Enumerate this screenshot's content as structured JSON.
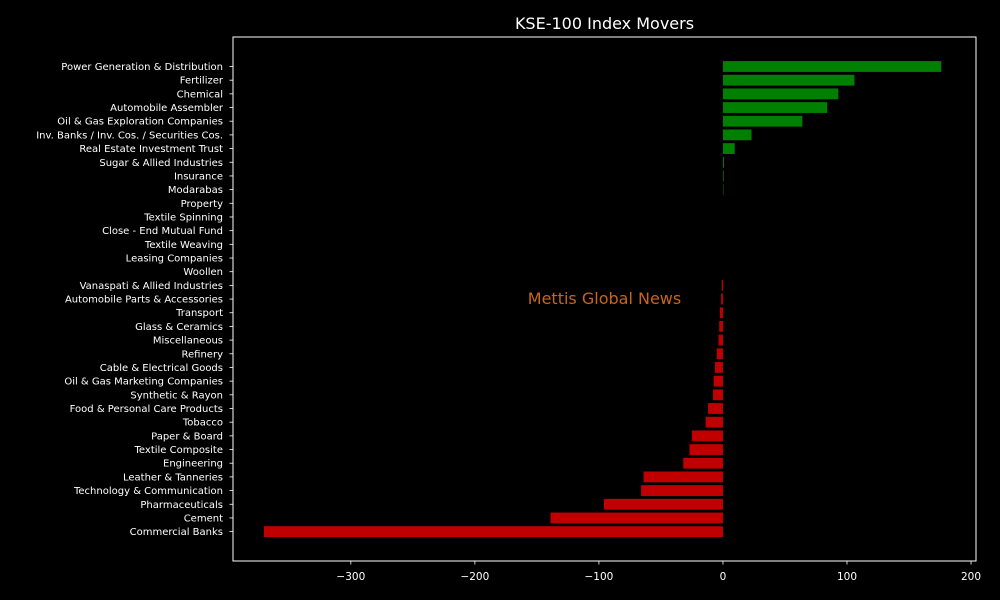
{
  "chart_data": {
    "type": "bar",
    "orientation": "horizontal",
    "title": "KSE-100 Index Movers",
    "xlabel": "",
    "ylabel": "",
    "xlim": [
      -395,
      204
    ],
    "xticks": [
      -300,
      -200,
      -100,
      0,
      100,
      200
    ],
    "xtick_labels": [
      "−300",
      "−200",
      "−100",
      "0",
      "100",
      "200"
    ],
    "grid": false,
    "categories": [
      "Power Generation & Distribution",
      "Fertilizer",
      "Chemical",
      "Automobile Assembler",
      "Oil & Gas Exploration Companies",
      "Inv. Banks / Inv. Cos. / Securities Cos.",
      "Real Estate Investment Trust",
      "Sugar & Allied Industries",
      "Insurance",
      "Modarabas",
      "Property",
      "Textile Spinning",
      "Close - End Mutual Fund",
      "Textile Weaving",
      "Leasing Companies",
      "Woollen",
      "Vanaspati & Allied Industries",
      "Automobile Parts & Accessories",
      "Transport",
      "Glass & Ceramics",
      "Miscellaneous",
      "Refinery",
      "Cable & Electrical Goods",
      "Oil & Gas Marketing Companies",
      "Synthetic & Rayon",
      "Food & Personal Care Products",
      "Tobacco",
      "Paper & Board",
      "Textile Composite",
      "Engineering",
      "Leather & Tanneries",
      "Technology & Communication",
      "Pharmaceuticals",
      "Cement",
      "Commercial Banks"
    ],
    "values": [
      176,
      106,
      93,
      84,
      64,
      23,
      9.5,
      0.8,
      0.6,
      0.4,
      0,
      0,
      0,
      0,
      0,
      0,
      -1,
      -1.5,
      -2.5,
      -3,
      -3.5,
      -5,
      -6.5,
      -7.5,
      -8,
      -12,
      -14,
      -25,
      -27,
      -32,
      -64,
      -66,
      -96,
      -139,
      -370
    ],
    "colors": {
      "positive": "#008000",
      "negative": "#c00000"
    }
  },
  "watermark": {
    "text": "Mettis Global News",
    "color": "#c8651a"
  }
}
